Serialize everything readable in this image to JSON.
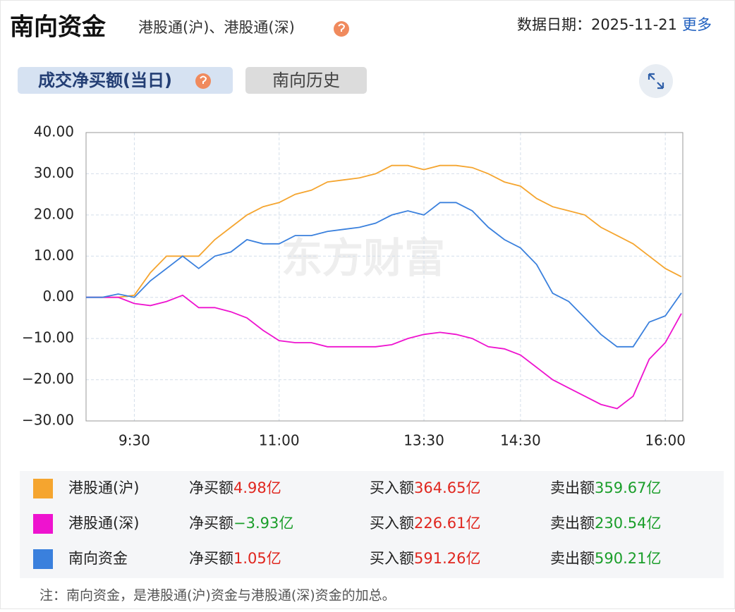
{
  "header": {
    "title": "南向资金",
    "subtitle": "港股通(沪)、港股通(深)",
    "date": "数据日期：2025-11-21",
    "more": "更多"
  },
  "tabs": [
    "成交净买额(当日)",
    "南向历史"
  ],
  "watermark": "东方财富",
  "chart_data": {
    "type": "line",
    "categories": [
      null,
      null,
      null,
      "9:30",
      null,
      null,
      null,
      null,
      null,
      null,
      null,
      null,
      "11:00",
      null,
      null,
      null,
      null,
      null,
      null,
      null,
      null,
      "13:30",
      null,
      null,
      null,
      null,
      null,
      "14:30",
      null,
      null,
      null,
      null,
      null,
      null,
      null,
      null,
      "16:00",
      null
    ],
    "ylim": [
      -30,
      40
    ],
    "yticks": [
      {
        "value": 40,
        "label": "40.00"
      },
      {
        "value": 30,
        "label": "30.00"
      },
      {
        "value": 20,
        "label": "20.00"
      },
      {
        "value": 10,
        "label": "10.00"
      },
      {
        "value": 0,
        "label": "0.00"
      },
      {
        "value": -10,
        "label": "−10.00"
      },
      {
        "value": -20,
        "label": "−20.00"
      },
      {
        "value": -30,
        "label": "−30.00"
      }
    ],
    "grid": true,
    "series": [
      {
        "name": "港股通(沪)",
        "color": "#f5a52f",
        "values": [
          0,
          0,
          0,
          0.5,
          6,
          10,
          10,
          10,
          14,
          17,
          20,
          22,
          23,
          25,
          26,
          28,
          28.5,
          29,
          30,
          32,
          32,
          31,
          32,
          32,
          31.5,
          30,
          28,
          27,
          24,
          22,
          21,
          20,
          17,
          15,
          13,
          10,
          7,
          4.98
        ]
      },
      {
        "name": "港股通(深)",
        "color": "#ee13cf",
        "values": [
          0,
          0,
          0,
          -1.5,
          -2,
          -1,
          0.5,
          -2.5,
          -2.5,
          -3.5,
          -5,
          -8,
          -10.5,
          -11,
          -11,
          -12,
          -12,
          -12,
          -12,
          -11.5,
          -10,
          -9,
          -8.5,
          -9,
          -10,
          -12,
          -12.5,
          -14,
          -17,
          -20,
          -22,
          -24,
          -26,
          -27,
          -24,
          -15,
          -11,
          -3.93
        ]
      },
      {
        "name": "南向资金",
        "color": "#3a80dd",
        "values": [
          0,
          0,
          0.8,
          0,
          4,
          7,
          10,
          7,
          10,
          11,
          14,
          13,
          13,
          15,
          15,
          16,
          16.5,
          17,
          18,
          20,
          21,
          20,
          23,
          23,
          21,
          17,
          14,
          12,
          8,
          1,
          -1,
          -5,
          -9,
          -12,
          -12,
          -6,
          -4.5,
          1.05
        ]
      }
    ]
  },
  "summary": {
    "labels": [
      "净买额",
      "买入额",
      "卖出额"
    ],
    "rows": [
      [
        "4.98亿",
        "364.65亿",
        "359.67亿"
      ],
      [
        "−3.93亿",
        "226.61亿",
        "230.54亿"
      ],
      [
        "1.05亿",
        "591.26亿",
        "590.21亿"
      ]
    ]
  },
  "note": "注：南向资金，是港股通(沪)资金与港股通(深)资金的加总。"
}
